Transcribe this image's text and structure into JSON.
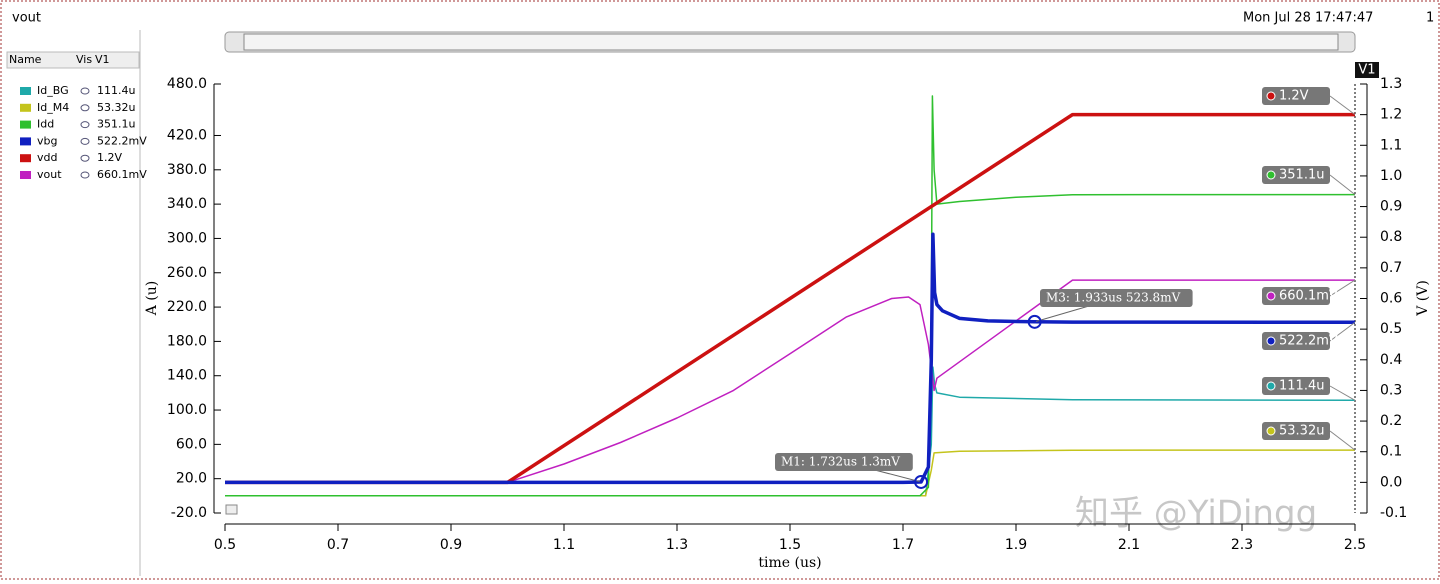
{
  "window": {
    "title": "vout",
    "timestamp": "Mon Jul 28 17:47:47",
    "page": "1",
    "watermark": "知乎 @YiDingg"
  },
  "legend_header": [
    "Name",
    "Vis",
    "V1"
  ],
  "chart_data": {
    "type": "line",
    "xlabel": "time (us)",
    "ylabel": "A (u)",
    "y2label": "V (V)",
    "y2_name": "V1",
    "xlim": [
      0.5,
      2.5
    ],
    "xticks": [
      0.5,
      0.7,
      0.9,
      1.1,
      1.3,
      1.5,
      1.7,
      1.9,
      2.1,
      2.3,
      2.5
    ],
    "ylim": [
      -20,
      480
    ],
    "yticks": [
      {
        "value": 480,
        "label": "480.0"
      },
      {
        "value": 420,
        "label": "420.0"
      },
      {
        "value": 380,
        "label": "380.0"
      },
      {
        "value": 340,
        "label": "340.0"
      },
      {
        "value": 300,
        "label": "300.0"
      },
      {
        "value": 260,
        "label": "260.0"
      },
      {
        "value": 220,
        "label": "220.0"
      },
      {
        "value": 180,
        "label": "180.0"
      },
      {
        "value": 140,
        "label": "140.0"
      },
      {
        "value": 100,
        "label": "100.0"
      },
      {
        "value": 60,
        "label": "60.0"
      },
      {
        "value": 20,
        "label": "20.0"
      },
      {
        "value": -20,
        "label": "-20.0"
      }
    ],
    "y2lim": [
      -0.1,
      1.3
    ],
    "y2ticks": [
      1.3,
      1.2,
      1.1,
      {
        "value": 1.0,
        "label": "1.0"
      },
      0.9,
      0.8,
      0.7,
      0.6,
      0.5,
      0.4,
      0.3,
      0.2,
      0.1,
      {
        "value": 0.0,
        "label": "0.0"
      },
      -0.1
    ],
    "grid": false,
    "series": [
      {
        "name": "Id_BG",
        "color": "#1fa9a9",
        "axis": "y",
        "line_width": 1.5,
        "end_label": "111.4u",
        "x": [
          0.5,
          1.74,
          1.75,
          1.753,
          1.756,
          1.76,
          1.8,
          2.0,
          2.5
        ],
        "values": [
          0,
          0,
          60,
          150,
          130,
          120,
          115,
          112,
          111.4
        ]
      },
      {
        "name": "Id_M4",
        "color": "#c4c41c",
        "axis": "y",
        "line_width": 1.5,
        "end_label": "53.32u",
        "x": [
          0.5,
          1.74,
          1.75,
          1.755,
          1.8,
          2.0,
          2.5
        ],
        "values": [
          0,
          0,
          30,
          50,
          52,
          53.2,
          53.32
        ]
      },
      {
        "name": "Idd",
        "color": "#2fc02f",
        "axis": "y",
        "line_width": 1.5,
        "end_label": "351.1u",
        "x": [
          0.5,
          1.73,
          1.745,
          1.75,
          1.752,
          1.755,
          1.76,
          1.8,
          1.9,
          2.0,
          2.5
        ],
        "values": [
          0,
          0,
          10,
          200,
          466,
          380,
          340,
          343,
          348,
          351,
          351.1
        ]
      },
      {
        "name": "vbg",
        "color": "#1020c0",
        "axis": "y2",
        "line_width": 3.5,
        "end_label": "522.2mV",
        "x": [
          0.5,
          1.0,
          1.7,
          1.732,
          1.745,
          1.75,
          1.753,
          1.756,
          1.76,
          1.77,
          1.8,
          1.85,
          1.933,
          2.0,
          2.5
        ],
        "values": [
          0,
          0,
          0,
          0.0013,
          0.05,
          0.4,
          0.81,
          0.62,
          0.58,
          0.56,
          0.535,
          0.527,
          0.5238,
          0.523,
          0.5222
        ]
      },
      {
        "name": "vdd",
        "color": "#cc1111",
        "axis": "y2",
        "line_width": 3.5,
        "end_label": "1.2V",
        "x": [
          0.5,
          1.0,
          2.0,
          2.5
        ],
        "values": [
          0,
          0,
          1.2,
          1.2
        ]
      },
      {
        "name": "vout",
        "color": "#c020c0",
        "axis": "y2",
        "line_width": 1.5,
        "end_label": "660.1mV",
        "x": [
          0.5,
          1.0,
          1.1,
          1.2,
          1.3,
          1.4,
          1.5,
          1.6,
          1.68,
          1.71,
          1.73,
          1.745,
          1.755,
          1.76,
          2.0,
          2.5
        ],
        "values": [
          0,
          0,
          0.06,
          0.13,
          0.21,
          0.3,
          0.42,
          0.54,
          0.6,
          0.605,
          0.58,
          0.45,
          0.3,
          0.34,
          0.66,
          0.6601
        ]
      }
    ],
    "markers": [
      {
        "label": "M1: 1.732us 1.3mV",
        "x": 1.732,
        "y": 0.0013,
        "axis": "y2"
      },
      {
        "label": "M3: 1.933us 523.8mV",
        "x": 1.933,
        "y": 0.5238,
        "axis": "y2"
      }
    ]
  }
}
